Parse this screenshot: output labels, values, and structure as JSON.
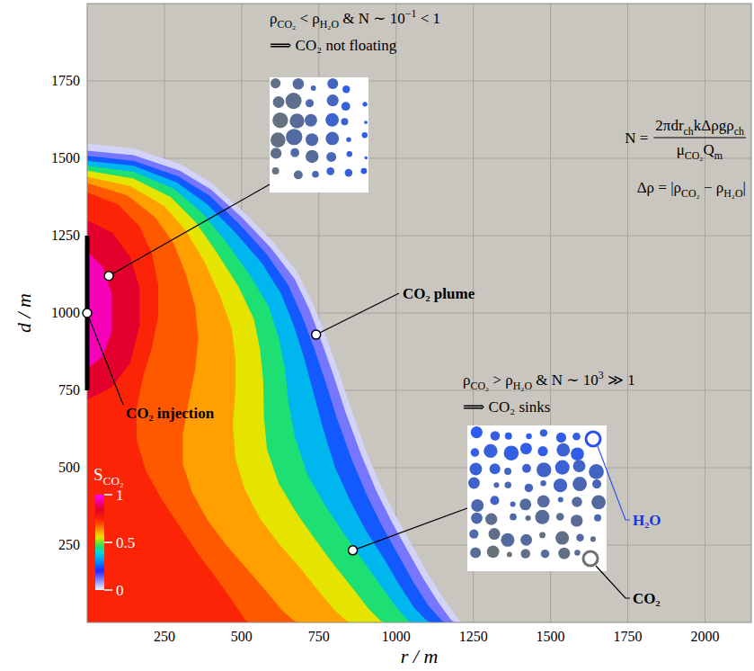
{
  "chart_data": {
    "type": "contour",
    "x_label": "r / m",
    "y_label": "d / m",
    "xlim": [
      0,
      2150
    ],
    "ylim": [
      0,
      2000
    ],
    "xticks": [
      250,
      500,
      750,
      1000,
      1250,
      1500,
      1750,
      2000
    ],
    "yticks": [
      250,
      500,
      750,
      1000,
      1250,
      1500,
      1750
    ],
    "grid": true,
    "colorbar": {
      "label": [
        "S",
        {
          "sub": "CO₂"
        }
      ],
      "range": [
        0,
        1
      ],
      "ticks": [
        0,
        0.5,
        1
      ]
    },
    "contours": [
      {
        "level": 0.03,
        "r": [
          0,
          150,
          300,
          400,
          500,
          600,
          680,
          730,
          770,
          810,
          850,
          900,
          950,
          1000,
          1050,
          1100,
          1150,
          1200,
          1215
        ],
        "d": [
          1548,
          1532,
          1482,
          1422,
          1332,
          1232,
          1132,
          1032,
          932,
          822,
          702,
          562,
          442,
          342,
          252,
          162,
          82,
          12,
          0
        ]
      },
      {
        "level": 0.12,
        "r": [
          0,
          150,
          300,
          400,
          500,
          595,
          672,
          720,
          758,
          797,
          836,
          886,
          936,
          986,
          1036,
          1086,
          1136,
          1178,
          1190
        ],
        "d": [
          1525,
          1510,
          1460,
          1400,
          1310,
          1210,
          1110,
          1010,
          910,
          800,
          680,
          545,
          425,
          325,
          235,
          145,
          65,
          8,
          0
        ]
      },
      {
        "level": 0.25,
        "r": [
          0,
          150,
          295,
          395,
          490,
          580,
          650,
          695,
          733,
          770,
          808,
          856,
          906,
          956,
          1006,
          1056,
          1106,
          1148,
          1160
        ],
        "d": [
          1508,
          1492,
          1442,
          1380,
          1290,
          1192,
          1092,
          992,
          892,
          782,
          662,
          528,
          410,
          310,
          220,
          130,
          52,
          6,
          0
        ]
      },
      {
        "level": 0.35,
        "r": [
          0,
          150,
          290,
          388,
          478,
          565,
          628,
          668,
          700,
          730,
          762,
          802,
          852,
          902,
          960,
          1010,
          1060,
          1100,
          1112
        ],
        "d": [
          1492,
          1476,
          1422,
          1352,
          1262,
          1162,
          1062,
          962,
          862,
          752,
          632,
          502,
          392,
          297,
          207,
          122,
          46,
          5,
          0
        ]
      },
      {
        "level": 0.45,
        "r": [
          0,
          150,
          280,
          370,
          450,
          528,
          588,
          620,
          640,
          652,
          672,
          712,
          772,
          832,
          892,
          950,
          1000,
          1040,
          1052
        ],
        "d": [
          1476,
          1456,
          1402,
          1326,
          1230,
          1120,
          1020,
          920,
          820,
          710,
          600,
          480,
          375,
          285,
          200,
          120,
          50,
          5,
          0
        ]
      },
      {
        "level": 0.55,
        "r": [
          0,
          150,
          270,
          350,
          420,
          490,
          540,
          560,
          570,
          572,
          582,
          620,
          680,
          740,
          800,
          860,
          910,
          950,
          962
        ],
        "d": [
          1460,
          1435,
          1375,
          1295,
          1195,
          1085,
          980,
          880,
          780,
          670,
          560,
          450,
          350,
          265,
          185,
          110,
          45,
          5,
          0
        ]
      },
      {
        "level": 0.62,
        "r": [
          0,
          140,
          250,
          320,
          380,
          430,
          468,
          480,
          480,
          472,
          480,
          510,
          560,
          620,
          690,
          750,
          800,
          840,
          852
        ],
        "d": [
          1440,
          1410,
          1345,
          1265,
          1165,
          1055,
          950,
          850,
          750,
          640,
          530,
          430,
          335,
          255,
          175,
          100,
          40,
          5,
          0
        ]
      },
      {
        "level": 0.68,
        "r": [
          0,
          130,
          220,
          280,
          320,
          350,
          360,
          350,
          330,
          310,
          310,
          340,
          390,
          450,
          520,
          580,
          630,
          670,
          682
        ],
        "d": [
          1420,
          1380,
          1310,
          1225,
          1125,
          1020,
          920,
          820,
          720,
          610,
          510,
          420,
          330,
          250,
          170,
          100,
          40,
          5,
          0
        ]
      },
      {
        "level": 0.74,
        "r": [
          0,
          100,
          170,
          210,
          230,
          230,
          210,
          180,
          160,
          160,
          190,
          240,
          300,
          360,
          420,
          470,
          510,
          522
        ],
        "d": [
          1390,
          1350,
          1280,
          1190,
          1090,
          990,
          890,
          790,
          690,
          590,
          490,
          400,
          310,
          220,
          140,
          70,
          10,
          0
        ]
      },
      {
        "level": 0.85,
        "r": [
          0,
          80,
          140,
          170,
          170,
          140,
          80,
          0
        ],
        "d": [
          1300,
          1260,
          1180,
          1080,
          960,
          840,
          760,
          720
        ]
      },
      {
        "level": 0.95,
        "r": [
          0,
          50,
          80,
          80,
          50,
          0
        ],
        "d": [
          1200,
          1150,
          1060,
          940,
          860,
          820
        ]
      }
    ],
    "injection": {
      "r": 0,
      "d": [
        750,
        1250
      ],
      "point": {
        "r": 0,
        "d": 1000
      },
      "label": "CO₂ injection"
    },
    "plume_label": {
      "text": "CO₂ plume",
      "r": 741,
      "d": 930
    },
    "annotations": [
      {
        "lines": [
          [
            "ρ",
            {
              "sub": "CO₂"
            },
            " < ρ",
            {
              "sub": "H₂O"
            },
            " & N ∼ 10",
            {
              "sup": "−1"
            },
            " < 1"
          ],
          [
            "⟹ CO₂ not floating"
          ]
        ],
        "r": 70,
        "d": 1120
      },
      {
        "lines": [
          [
            "ρ",
            {
              "sub": "CO₂"
            },
            " > ρ",
            {
              "sub": "H₂O"
            },
            " & N ∼ 10",
            {
              "sup": "3"
            },
            " ≫ 1"
          ],
          [
            "⟹ CO₂ sinks"
          ]
        ],
        "r": 860,
        "d": 233
      }
    ],
    "formula": {
      "lhs": "N =",
      "numerator": [
        "2πdr",
        {
          "sub": "ch"
        },
        "kΔρgρ",
        {
          "sub": "ch"
        }
      ],
      "denominator": [
        "μ",
        {
          "sub": "CO₂"
        },
        "Q",
        {
          "sub": "m"
        }
      ]
    },
    "delta_rho": [
      "Δρ = |ρ",
      {
        "sub": "CO₂"
      },
      " − ρ",
      {
        "sub": "H₂O"
      },
      "|"
    ],
    "inset_labels": {
      "h2o": "H₂O",
      "co2": "CO₂"
    }
  }
}
